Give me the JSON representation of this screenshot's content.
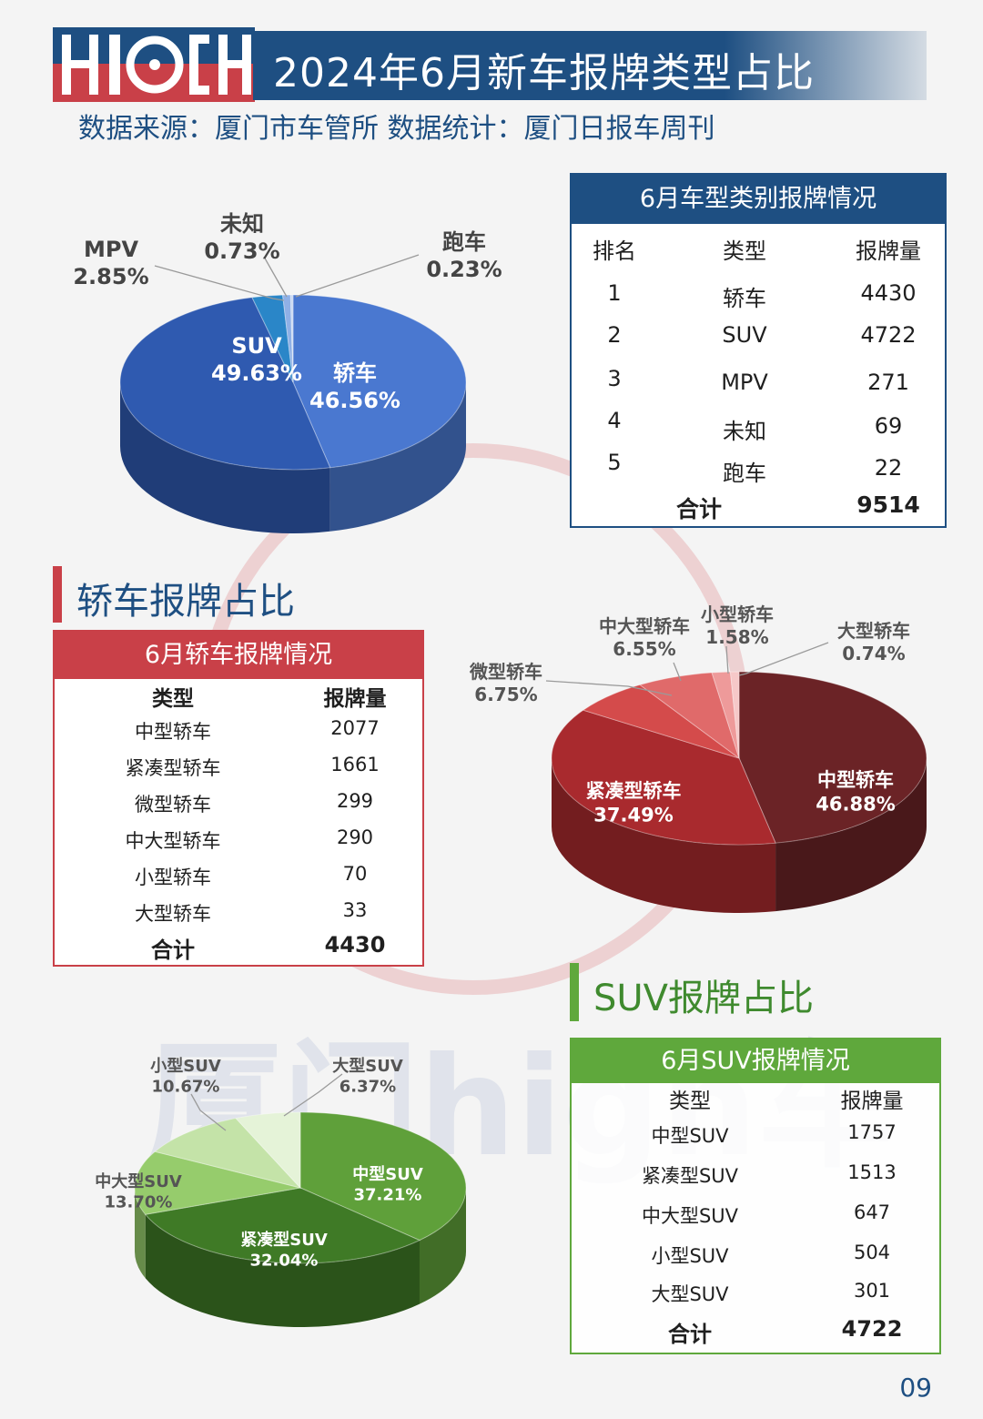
{
  "header": {
    "logo_text": "HIGH",
    "title": "2024年6月新车报牌类型占比",
    "source": "数据来源：厦门市车管所  数据统计：厦门日报车周刊"
  },
  "watermark": "厦门high车",
  "colors": {
    "navy": "#1e4f82",
    "red": "#c94048",
    "green": "#5fa83c",
    "sedan_blue": "#4a78d0",
    "suv_blue": "#2f5ab0"
  },
  "main_table": {
    "title": "6月车型类别报牌情况",
    "headers": [
      "排名",
      "类型",
      "报牌量"
    ],
    "rows": [
      [
        "1",
        "轿车",
        "4430"
      ],
      [
        "2",
        "SUV",
        "4722"
      ],
      [
        "3",
        "MPV",
        "271"
      ],
      [
        "4",
        "未知",
        "69"
      ],
      [
        "5",
        "跑车",
        "22"
      ]
    ],
    "total_label": "合计",
    "total_value": "9514"
  },
  "sedan_section": {
    "heading": "轿车报牌占比",
    "table_title": "6月轿车报牌情况",
    "headers": [
      "类型",
      "报牌量"
    ],
    "rows": [
      [
        "中型轿车",
        "2077"
      ],
      [
        "紧凑型轿车",
        "1661"
      ],
      [
        "微型轿车",
        "299"
      ],
      [
        "中大型轿车",
        "290"
      ],
      [
        "小型轿车",
        "70"
      ],
      [
        "大型轿车",
        "33"
      ]
    ],
    "total_label": "合计",
    "total_value": "4430"
  },
  "suv_section": {
    "heading": "SUV报牌占比",
    "table_title": "6月SUV报牌情况",
    "headers": [
      "类型",
      "报牌量"
    ],
    "rows": [
      [
        "中型SUV",
        "1757"
      ],
      [
        "紧凑型SUV",
        "1513"
      ],
      [
        "中大型SUV",
        "647"
      ],
      [
        "小型SUV",
        "504"
      ],
      [
        "大型SUV",
        "301"
      ]
    ],
    "total_label": "合计",
    "total_value": "4722"
  },
  "chart_data": [
    {
      "type": "pie",
      "title": "",
      "labels": [
        "轿车",
        "SUV",
        "MPV",
        "未知",
        "跑车"
      ],
      "values": [
        46.56,
        49.63,
        2.85,
        0.73,
        0.23
      ],
      "value_text": [
        "46.56%",
        "49.63%",
        "2.85%",
        "0.73%",
        "0.23%"
      ],
      "colors": [
        "#4a78d0",
        "#2f5ab0",
        "#2a86c8",
        "#8fb0e6",
        "#c9d8f2"
      ]
    },
    {
      "type": "pie",
      "title": "",
      "labels": [
        "中型轿车",
        "紧凑型轿车",
        "微型轿车",
        "中大型轿车",
        "小型轿车",
        "大型轿车"
      ],
      "values": [
        46.88,
        37.49,
        6.75,
        6.55,
        1.58,
        0.74
      ],
      "value_text": [
        "46.88%",
        "37.49%",
        "6.75%",
        "6.55%",
        "1.58%",
        "0.74%"
      ],
      "colors": [
        "#6b2326",
        "#a92a2e",
        "#d44b4b",
        "#e06a6a",
        "#ee9a9a",
        "#f6c8c8"
      ]
    },
    {
      "type": "pie",
      "title": "",
      "labels": [
        "中型SUV",
        "紧凑型SUV",
        "中大型SUV",
        "小型SUV",
        "大型SUV"
      ],
      "values": [
        37.21,
        32.04,
        13.7,
        10.67,
        6.37
      ],
      "value_text": [
        "37.21%",
        "32.04%",
        "13.70%",
        "10.67%",
        "6.37%"
      ],
      "colors": [
        "#5fa03a",
        "#3f7a26",
        "#96cc6c",
        "#c4e3a8",
        "#e5f3d8"
      ]
    }
  ],
  "page_number": "09"
}
